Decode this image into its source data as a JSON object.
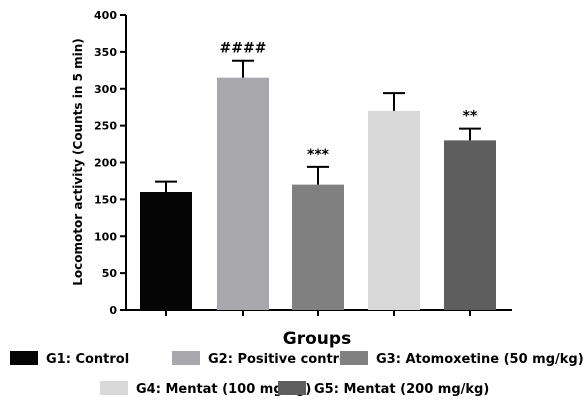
{
  "chart_data": {
    "type": "bar",
    "xlabel": "Groups",
    "ylabel": "Locomotor activity (Counts in 5 min)",
    "ylim": [
      0,
      400
    ],
    "yticks": [
      0,
      50,
      100,
      150,
      200,
      250,
      300,
      350,
      400
    ],
    "grid": false,
    "legend_position": "bottom",
    "categories": [
      "G1: Control",
      "G2: Positive control",
      "G3: Atomoxetine (50 mg/kg)",
      "G4: Mentat (100 mg/kg)",
      "G5: Mentat (200 mg/kg)"
    ],
    "values": [
      160,
      315,
      170,
      270,
      230
    ],
    "errors": [
      14,
      23,
      24,
      24,
      16
    ],
    "annotations": [
      "",
      "####",
      "***",
      "",
      "**"
    ],
    "colors": [
      "#050505",
      "#a8a8ac",
      "#808080",
      "#d8d8d8",
      "#5e5e5e"
    ]
  }
}
